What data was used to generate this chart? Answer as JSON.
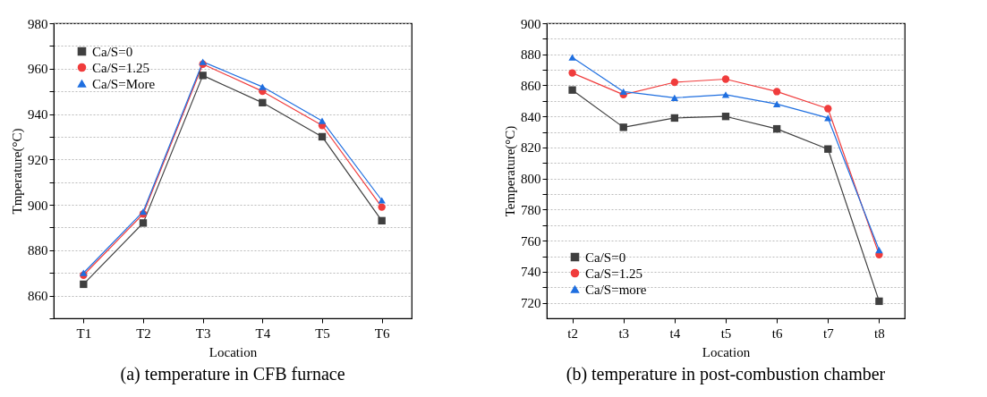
{
  "chart_data": [
    {
      "type": "line",
      "title": "(a) temperature in CFB furnace",
      "xlabel": "Location",
      "ylabel": "Tmperature(°C)",
      "categories": [
        "T1",
        "T2",
        "T3",
        "T4",
        "T5",
        "T6"
      ],
      "ylim": [
        850,
        980
      ],
      "yticks": [
        {
          "value": 850,
          "label": null
        },
        860,
        {
          "value": 870,
          "label": null
        },
        880,
        {
          "value": 890,
          "label": null
        },
        900,
        {
          "value": 910,
          "label": null
        },
        920,
        {
          "value": 930,
          "label": null
        },
        940,
        {
          "value": 950,
          "label": null
        },
        960,
        {
          "value": 970,
          "label": null
        },
        980
      ],
      "grid": "y",
      "legend": "top left",
      "line_style": "solid",
      "series": [
        {
          "name": "Ca/S=0",
          "color": "#3f3f3f",
          "marker": "square",
          "values": [
            865,
            892,
            957,
            945,
            930,
            893
          ]
        },
        {
          "name": "Ca/S=1.25",
          "color": "#f03c3c",
          "marker": "circle",
          "values": [
            869,
            896,
            962,
            950,
            935,
            899
          ]
        },
        {
          "name": "Ca/S=More",
          "color": "#1f6fe0",
          "marker": "triangle",
          "values": [
            870,
            897,
            963,
            952,
            937,
            902
          ]
        }
      ]
    },
    {
      "type": "line",
      "title": "(b) temperature in post-combustion chamber",
      "xlabel": "Location",
      "ylabel": "Temperature(°C)",
      "categories": [
        "t2",
        "t3",
        "t4",
        "t5",
        "t6",
        "t7",
        "t8"
      ],
      "ylim": [
        710,
        900
      ],
      "yticks": [
        720,
        {
          "value": 730,
          "label": null
        },
        740,
        {
          "value": 750,
          "label": null
        },
        760,
        {
          "value": 770,
          "label": null
        },
        780,
        {
          "value": 790,
          "label": null
        },
        800,
        {
          "value": 810,
          "label": null
        },
        820,
        {
          "value": 830,
          "label": null
        },
        840,
        {
          "value": 850,
          "label": null
        },
        860,
        {
          "value": 870,
          "label": null
        },
        880,
        {
          "value": 890,
          "label": null
        },
        900
      ],
      "grid": "y",
      "legend": "bottom left",
      "line_style": "solid",
      "series": [
        {
          "name": "Ca/S=0",
          "color": "#3f3f3f",
          "marker": "square",
          "values": [
            857,
            833,
            839,
            840,
            832,
            819,
            721
          ]
        },
        {
          "name": "Ca/S=1.25",
          "color": "#f03c3c",
          "marker": "circle",
          "values": [
            868,
            854,
            862,
            864,
            856,
            845,
            751
          ]
        },
        {
          "name": "Ca/S=more",
          "color": "#1f6fe0",
          "marker": "triangle",
          "values": [
            878,
            856,
            852,
            854,
            848,
            839,
            754
          ]
        }
      ]
    }
  ]
}
